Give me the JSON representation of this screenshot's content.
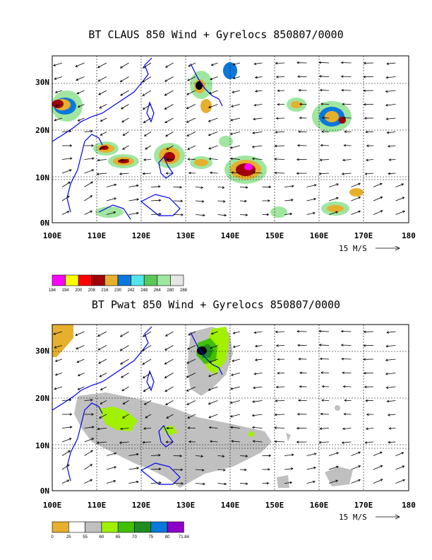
{
  "panels": [
    {
      "title": "BT CLAUS 850 Wind + Gyrelocs 850807/0000",
      "lon_labels": [
        "100E",
        "110E",
        "120E",
        "130E",
        "140E",
        "150E",
        "160E",
        "170E",
        "180"
      ],
      "lat_labels": [
        "30N",
        "20N",
        "10N",
        "0N"
      ],
      "vector_label": "15 M/S",
      "colorbar_values": [
        "184",
        "194",
        "200",
        "208",
        "216",
        "230",
        "242",
        "248",
        "264",
        "280",
        "288"
      ],
      "colorbar_colors": [
        "#ff00ff",
        "#ffff00",
        "#ff0000",
        "#a00000",
        "#e6af2d",
        "#0a78dc",
        "#50e6e6",
        "#5ac85a",
        "#a0e6a0",
        "#e6e6e6"
      ]
    },
    {
      "title": "BT Pwat 850 Wind + Gyrelocs 850807/0000",
      "lon_labels": [
        "100E",
        "110E",
        "120E",
        "130E",
        "140E",
        "150E",
        "160E",
        "170E",
        "180"
      ],
      "lat_labels": [
        "30N",
        "20N",
        "10N",
        "0N"
      ],
      "vector_label": "15 M/S",
      "colorbar_values": [
        "0",
        "25",
        "55",
        "60",
        "65",
        "70",
        "75",
        "80",
        "71.84"
      ],
      "colorbar_colors": [
        "#e6af2d",
        "#ffffff",
        "#c0c0c0",
        "#a0f000",
        "#40c000",
        "#1e8c1e",
        "#0a78dc",
        "#8c00c8"
      ]
    }
  ]
}
